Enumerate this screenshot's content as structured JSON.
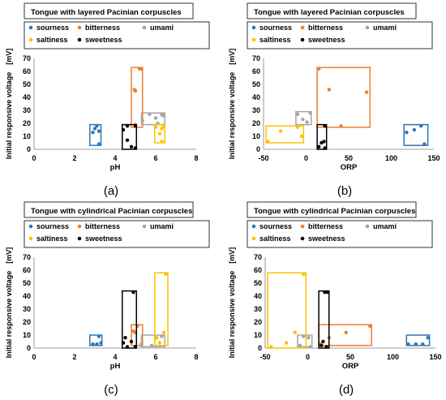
{
  "colors": {
    "sourness": "#2e75b6",
    "bitterness": "#ed7d31",
    "umami": "#a5a5a5",
    "saltiness": "#ffc000",
    "sweetness": "#000000"
  },
  "chart_data": [
    {
      "type": "scatter",
      "panel_label": "(a)",
      "title": "Tongue with layered Pacinian corpuscles",
      "xlabel": "pH",
      "ylabel": "Initial responsive voltage　[mV]",
      "xlim": [
        0,
        8
      ],
      "ylim": [
        0,
        70
      ],
      "xticks": [
        0,
        2,
        4,
        6,
        8
      ],
      "yticks": [
        0,
        10,
        20,
        30,
        40,
        50,
        60,
        70
      ],
      "grid": false,
      "legend": [
        "sourness",
        "bitterness",
        "umami",
        "saltiness",
        "sweetness"
      ],
      "series": [
        {
          "name": "sourness",
          "points": [
            [
              2.9,
              13
            ],
            [
              3.0,
              16
            ],
            [
              3.1,
              18
            ],
            [
              3.2,
              14
            ],
            [
              3.2,
              4
            ]
          ],
          "range": {
            "x": [
              2.75,
              3.3
            ],
            "y": [
              3,
              19
            ]
          }
        },
        {
          "name": "bitterness",
          "points": [
            [
              4.95,
              46
            ],
            [
              5.0,
              45
            ],
            [
              5.0,
              18
            ],
            [
              5.2,
              62
            ],
            [
              5.3,
              62
            ],
            [
              5.0,
              19
            ]
          ],
          "range": {
            "x": [
              4.8,
              5.35
            ],
            "y": [
              17,
              63
            ]
          }
        },
        {
          "name": "umami",
          "points": [
            [
              5.35,
              22
            ],
            [
              5.7,
              27
            ],
            [
              6.0,
              24
            ],
            [
              6.1,
              20
            ],
            [
              6.3,
              27
            ],
            [
              6.35,
              26
            ]
          ],
          "range": {
            "x": [
              5.3,
              6.45
            ],
            "y": [
              19,
              28
            ]
          }
        },
        {
          "name": "saltiness",
          "points": [
            [
              6.0,
              17
            ],
            [
              6.2,
              12
            ],
            [
              6.3,
              16
            ],
            [
              6.3,
              6
            ],
            [
              6.4,
              18
            ]
          ],
          "range": {
            "x": [
              5.95,
              6.45
            ],
            "y": [
              5,
              19
            ]
          }
        },
        {
          "name": "sweetness",
          "points": [
            [
              4.4,
              15
            ],
            [
              4.6,
              18
            ],
            [
              4.6,
              7
            ],
            [
              4.8,
              2
            ],
            [
              5.0,
              1
            ],
            [
              5.0,
              18
            ]
          ],
          "range": {
            "x": [
              4.35,
              5.05
            ],
            "y": [
              0,
              19
            ]
          }
        }
      ]
    },
    {
      "type": "scatter",
      "panel_label": "(b)",
      "title": "Tongue with layered Pacinian corpuscles",
      "xlabel": "ORP",
      "ylabel": "Initial responsive voltage　[mV]",
      "xlim": [
        -50,
        150
      ],
      "ylim": [
        0,
        70
      ],
      "xticks": [
        -50,
        0,
        50,
        100,
        150
      ],
      "yticks": [
        0,
        10,
        20,
        30,
        40,
        50,
        60,
        70
      ],
      "grid": false,
      "legend": [
        "sourness",
        "bitterness",
        "umami",
        "saltiness",
        "sweetness"
      ],
      "series": [
        {
          "name": "sourness",
          "points": [
            [
              118,
              13
            ],
            [
              127,
              15
            ],
            [
              135,
              18
            ],
            [
              139,
              4
            ]
          ],
          "range": {
            "x": [
              115,
              143
            ],
            "y": [
              3,
              19
            ]
          }
        },
        {
          "name": "bitterness",
          "points": [
            [
              15,
              62
            ],
            [
              27,
              46
            ],
            [
              41,
              18
            ],
            [
              71,
              44
            ]
          ],
          "range": {
            "x": [
              13,
              75
            ],
            "y": [
              17,
              63
            ]
          }
        },
        {
          "name": "umami",
          "points": [
            [
              -10,
              27
            ],
            [
              -4,
              23
            ],
            [
              1,
              21
            ],
            [
              5,
              28
            ]
          ],
          "range": {
            "x": [
              -12,
              6
            ],
            "y": [
              19,
              29
            ]
          }
        },
        {
          "name": "saltiness",
          "points": [
            [
              -45,
              6
            ],
            [
              -30,
              14
            ],
            [
              -10,
              17
            ],
            [
              -5,
              10
            ]
          ],
          "range": {
            "x": [
              -47,
              -3
            ],
            "y": [
              5,
              18
            ]
          }
        },
        {
          "name": "sweetness",
          "points": [
            [
              15,
              2
            ],
            [
              18,
              5
            ],
            [
              21,
              6
            ],
            [
              22,
              1
            ],
            [
              22,
              18
            ]
          ],
          "range": {
            "x": [
              13,
              24
            ],
            "y": [
              0,
              19
            ]
          }
        }
      ]
    },
    {
      "type": "scatter",
      "panel_label": "(c)",
      "title": "Tongue with cylindrical Pacinian corpuscles",
      "xlabel": "pH",
      "ylabel": "Initial responsive voltage　[mV]",
      "xlim": [
        0,
        8
      ],
      "ylim": [
        0,
        70
      ],
      "xticks": [
        0,
        2,
        4,
        6,
        8
      ],
      "yticks": [
        0,
        10,
        20,
        30,
        40,
        50,
        60,
        70
      ],
      "grid": false,
      "legend": [
        "sourness",
        "bitterness",
        "umami",
        "saltiness",
        "sweetness"
      ],
      "series": [
        {
          "name": "sourness",
          "points": [
            [
              2.9,
              3
            ],
            [
              3.1,
              3
            ],
            [
              3.2,
              9
            ],
            [
              3.3,
              4
            ]
          ],
          "range": {
            "x": [
              2.75,
              3.35
            ],
            "y": [
              2,
              10
            ]
          }
        },
        {
          "name": "bitterness",
          "points": [
            [
              4.9,
              13
            ],
            [
              5.0,
              12
            ],
            [
              5.1,
              17
            ],
            [
              5.3,
              3
            ]
          ],
          "range": {
            "x": [
              4.8,
              5.35
            ],
            "y": [
              2,
              18
            ]
          }
        },
        {
          "name": "umami",
          "points": [
            [
              5.3,
              2
            ],
            [
              5.8,
              2
            ],
            [
              6.0,
              8
            ],
            [
              6.3,
              9
            ]
          ],
          "range": {
            "x": [
              5.3,
              6.45
            ],
            "y": [
              1,
              10
            ]
          }
        },
        {
          "name": "saltiness",
          "points": [
            [
              6.05,
              8
            ],
            [
              6.2,
              4
            ],
            [
              6.4,
              12
            ],
            [
              6.5,
              57
            ]
          ],
          "range": {
            "x": [
              5.95,
              6.6
            ],
            "y": [
              2,
              58
            ]
          }
        },
        {
          "name": "sweetness",
          "points": [
            [
              4.4,
              4
            ],
            [
              4.5,
              8
            ],
            [
              4.6,
              1
            ],
            [
              4.8,
              5
            ],
            [
              4.9,
              43
            ],
            [
              5.0,
              1
            ]
          ],
          "range": {
            "x": [
              4.35,
              5.05
            ],
            "y": [
              0,
              44
            ]
          }
        }
      ]
    },
    {
      "type": "scatter",
      "panel_label": "(d)",
      "title": "Tongue with cylindrical Pacinian corpuscles",
      "xlabel": "ORP",
      "ylabel": "Initial responsive voltage　[mV]",
      "xlim": [
        -50,
        150
      ],
      "ylim": [
        0,
        70
      ],
      "xticks": [
        -50,
        0,
        50,
        100,
        150
      ],
      "yticks": [
        0,
        10,
        20,
        30,
        40,
        50,
        60,
        70
      ],
      "grid": false,
      "legend": [
        "sourness",
        "bitterness",
        "umami",
        "saltiness",
        "sweetness"
      ],
      "series": [
        {
          "name": "sourness",
          "points": [
            [
              118,
              3
            ],
            [
              127,
              3
            ],
            [
              135,
              3
            ],
            [
              141,
              8
            ]
          ],
          "range": {
            "x": [
              116,
              143
            ],
            "y": [
              2,
              10
            ]
          }
        },
        {
          "name": "bitterness",
          "points": [
            [
              15,
              3
            ],
            [
              25,
              8
            ],
            [
              45,
              12
            ],
            [
              73,
              17
            ]
          ],
          "range": {
            "x": [
              13,
              75
            ],
            "y": [
              2,
              18
            ]
          }
        },
        {
          "name": "umami",
          "points": [
            [
              -9,
              2
            ],
            [
              -5,
              9
            ],
            [
              1,
              8
            ],
            [
              3,
              1
            ]
          ],
          "range": {
            "x": [
              -12,
              5
            ],
            "y": [
              1,
              10
            ]
          }
        },
        {
          "name": "saltiness",
          "points": [
            [
              -43,
              1
            ],
            [
              -25,
              4
            ],
            [
              -15,
              12
            ],
            [
              -5,
              57
            ]
          ],
          "range": {
            "x": [
              -47,
              -2
            ],
            "y": [
              0,
              58
            ]
          }
        },
        {
          "name": "sweetness",
          "points": [
            [
              16,
              2
            ],
            [
              18,
              5
            ],
            [
              20,
              43
            ],
            [
              22,
              1
            ],
            [
              23,
              43
            ]
          ],
          "range": {
            "x": [
              13,
              25
            ],
            "y": [
              0,
              44
            ]
          }
        }
      ]
    }
  ]
}
